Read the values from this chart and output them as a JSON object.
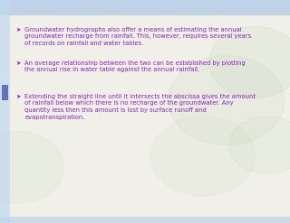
{
  "slide_bg": "#f0f0e8",
  "text_color": "#8822bb",
  "bullets": [
    "Groundwater hydrographs also offer a means of estimating the annual\ngroundwater recharge from rainfall. This, however, requires several years\nof records on rainfall and water tables.",
    "An average relationship between the two can be established by plotting\nthe annual rise in water table against the annual rainfall.",
    "Extending the straight line until it intersects the abscissa gives the amount\nof rainfall below which there is no recharge of the groundwater. Any\nquantity less then this amount is lost by surface runoff and\nevapotranspiration."
  ],
  "font_size": 5.2,
  "top_bar_color": "#aac8e8",
  "left_bar_color": "#c0d8f0",
  "blue_sq_color": "#5566bb",
  "bot_bar_color": "#aac8e8",
  "diagram_line_color": "#444444",
  "diagram_bg": "#ffffff"
}
